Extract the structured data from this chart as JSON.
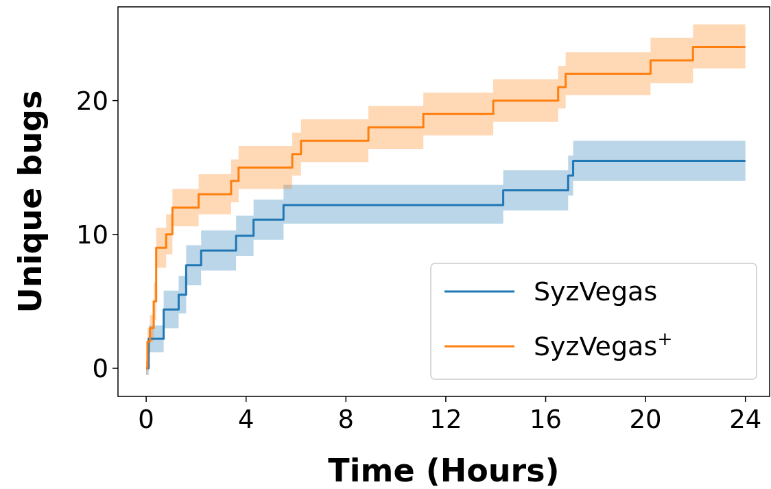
{
  "chart_data": {
    "type": "step",
    "xlabel": "Time (Hours)",
    "ylabel": "Unique bugs",
    "xlim": [
      -1.13,
      24.97
    ],
    "ylim": [
      -2.1,
      27
    ],
    "xticks": [
      0,
      4,
      8,
      12,
      16,
      20,
      24
    ],
    "yticks": [
      0,
      10,
      20
    ],
    "legend": "bottom right",
    "grid": false,
    "series": [
      {
        "name": "SyzVegas",
        "color": "#1f77b4",
        "x": [
          0,
          0.1,
          0.7,
          1.3,
          1.6,
          2.2,
          3.6,
          4.3,
          5.5,
          14.3,
          16.9,
          17.1,
          24
        ],
        "values": [
          0,
          2.2,
          4.4,
          5.5,
          7.7,
          8.8,
          9.9,
          11.1,
          12.2,
          13.3,
          14.4,
          15.5,
          15.5
        ],
        "lower": [
          -0.5,
          1.2,
          3.0,
          4.1,
          6.2,
          7.3,
          8.4,
          9.6,
          10.8,
          11.8,
          12.9,
          14.0,
          14.0
        ],
        "upper": [
          0.5,
          3.2,
          5.8,
          6.9,
          9.2,
          10.3,
          11.4,
          12.6,
          13.7,
          14.8,
          15.9,
          17.0,
          17.0
        ]
      },
      {
        "name": "SyzVegas$^{+}$",
        "color": "#ff7f0e",
        "x": [
          0,
          0.05,
          0.15,
          0.3,
          0.4,
          0.8,
          1.05,
          2.1,
          3.4,
          3.7,
          5.85,
          6.2,
          8.9,
          11.1,
          13.9,
          16.5,
          16.8,
          20.2,
          21.9,
          24
        ],
        "values": [
          0,
          2,
          3,
          5,
          9,
          10,
          12,
          13,
          14,
          15,
          16,
          17,
          18,
          19,
          20,
          21,
          22,
          23,
          24,
          24
        ],
        "lower": [
          -0.5,
          1,
          2,
          3.6,
          7.5,
          8.5,
          10.6,
          11.5,
          12.4,
          13.4,
          14.4,
          15.4,
          16.4,
          17.4,
          18.4,
          19.4,
          20.4,
          21.3,
          22.4,
          22.4
        ],
        "upper": [
          0.5,
          3,
          4,
          6.4,
          10.5,
          11.5,
          13.4,
          14.5,
          15.6,
          16.6,
          17.6,
          18.6,
          19.6,
          20.6,
          21.6,
          22.6,
          23.6,
          24.7,
          25.7,
          25.7
        ]
      }
    ]
  }
}
